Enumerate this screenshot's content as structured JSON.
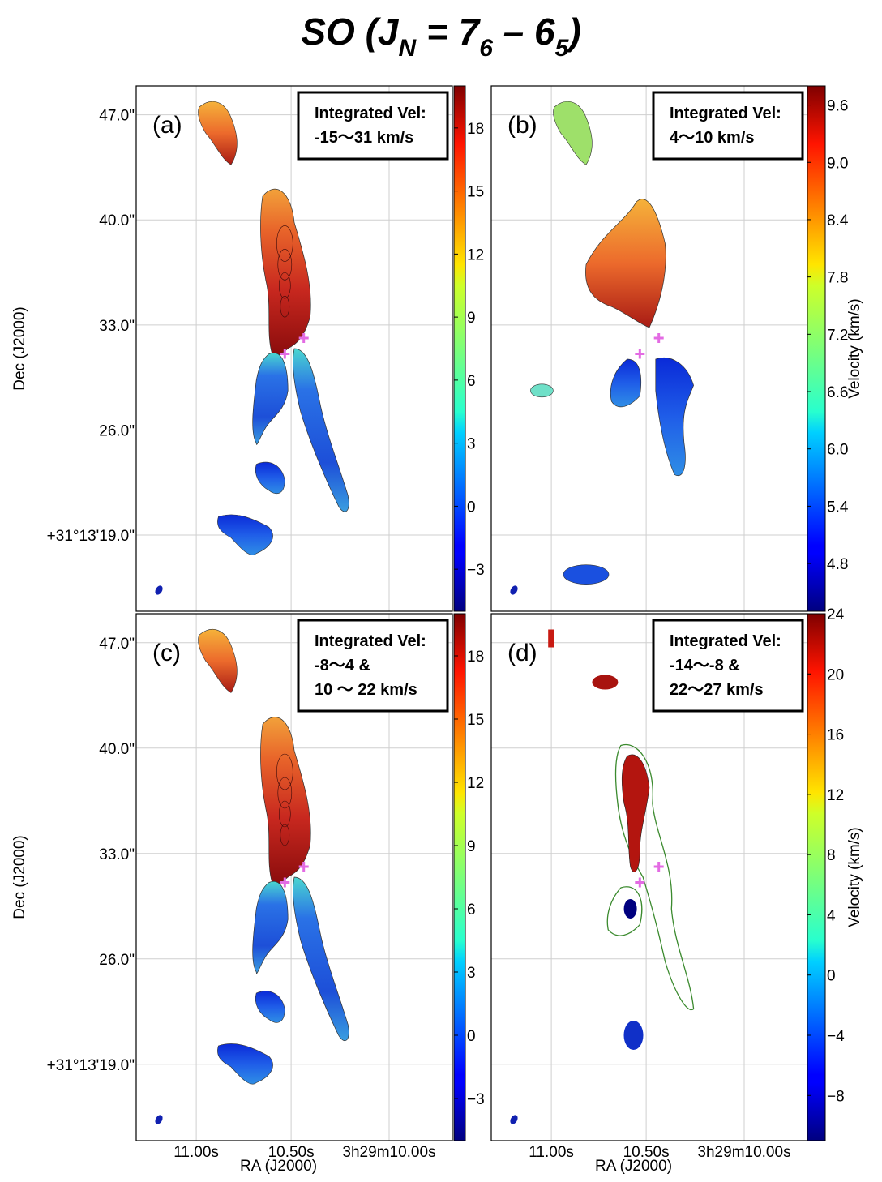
{
  "title": {
    "main": "SO (J",
    "sub_n": "N",
    "eq": " = 7",
    "sub_6": "6",
    "dash": " – 6",
    "sub_5": "5",
    "close": ")"
  },
  "axes": {
    "dec_label": "Dec (J2000)",
    "ra_label": "RA (J2000)",
    "dec_ticks": [
      "47.0\"",
      "40.0\"",
      "33.0\"",
      "26.0\"",
      "+31°13'19.0\""
    ],
    "ra_ticks": [
      "11.00s",
      "10.50s",
      "3h29m10.00s"
    ],
    "velocity_label": "Velocity (km/s)"
  },
  "chart_data": [
    {
      "type": "heatmap",
      "panel": "(a)",
      "legend_line1": "Integrated Vel:",
      "legend_line2": "-15～31 km/s",
      "legend_line3": "",
      "colorbar_ticks": [
        "18",
        "15",
        "12",
        "9",
        "6",
        "3",
        "0",
        "−3"
      ],
      "colorbar_range": [
        -5,
        20
      ],
      "xlabel": "",
      "ylabel": "Dec (J2000)",
      "protostars": 2
    },
    {
      "type": "heatmap",
      "panel": "(b)",
      "legend_line1": "Integrated Vel:",
      "legend_line2": "4～10 km/s",
      "legend_line3": "",
      "colorbar_ticks": [
        "9.6",
        "9.0",
        "8.4",
        "7.8",
        "7.2",
        "6.6",
        "6.0",
        "5.4",
        "4.8"
      ],
      "colorbar_range": [
        4.3,
        9.8
      ],
      "colorbar_label": "Velocity (km/s)",
      "protostars": 2
    },
    {
      "type": "heatmap",
      "panel": "(c)",
      "legend_line1": "Integrated Vel:",
      "legend_line2": "-8～4 &",
      "legend_line3": "10 ～ 22 km/s",
      "colorbar_ticks": [
        "18",
        "15",
        "12",
        "9",
        "6",
        "3",
        "0",
        "−3"
      ],
      "colorbar_range": [
        -5,
        20
      ],
      "xlabel": "RA (J2000)",
      "ylabel": "Dec (J2000)",
      "protostars": 2
    },
    {
      "type": "heatmap",
      "panel": "(d)",
      "legend_line1": "Integrated Vel:",
      "legend_line2": "-14～-8 &",
      "legend_line3": "22～27 km/s",
      "colorbar_ticks": [
        "24",
        "20",
        "16",
        "12",
        "8",
        "4",
        "0",
        "−4",
        "−8"
      ],
      "colorbar_range": [
        -11,
        24
      ],
      "colorbar_label": "Velocity (km/s)",
      "xlabel": "RA (J2000)",
      "protostars": 2
    }
  ]
}
